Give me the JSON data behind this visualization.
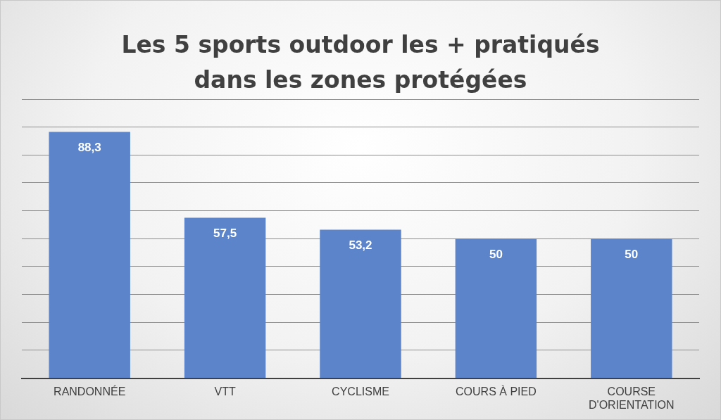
{
  "chart_data": {
    "type": "bar",
    "title": "Les 5 sports outdoor les + pratiqués dans les zones protégées",
    "categories": [
      "RANDONNÉE",
      "VTT",
      "CYCLISME",
      "COURS À PIED",
      "COURSE D'ORIENTATION"
    ],
    "values": [
      88.3,
      57.5,
      53.2,
      50,
      50
    ],
    "value_labels": [
      "88,3",
      "57,5",
      "53,2",
      "50",
      "50"
    ],
    "color": "#5b84cb",
    "ylim": [
      0,
      100
    ],
    "yticks": [
      0,
      10,
      20,
      30,
      40,
      50,
      60,
      70,
      80,
      90,
      100
    ],
    "tick_labels": "x",
    "grid": "y"
  }
}
